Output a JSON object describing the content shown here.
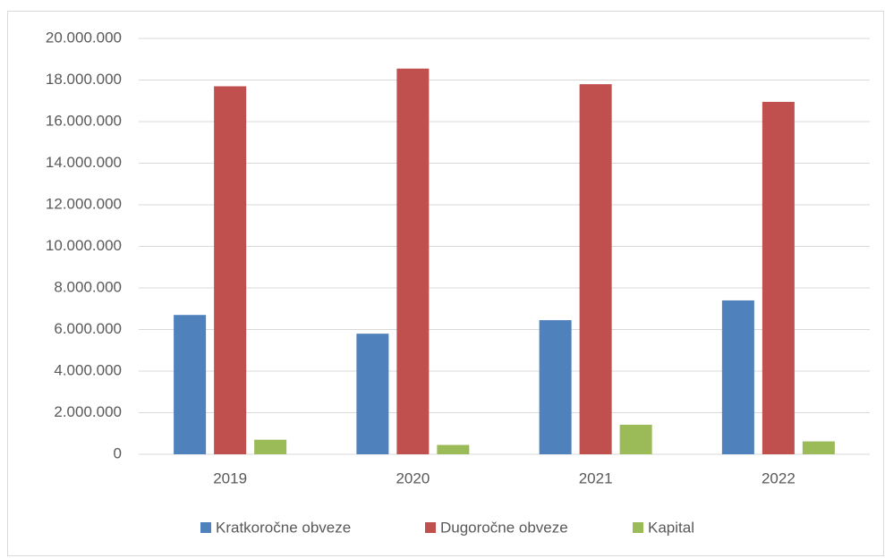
{
  "chart_data": {
    "type": "bar",
    "categories": [
      "2019",
      "2020",
      "2021",
      "2022"
    ],
    "series": [
      {
        "name": "Kratkoročne obveze",
        "color": "#4f81bd",
        "values": [
          6700000,
          5800000,
          6450000,
          7400000
        ]
      },
      {
        "name": "Dugoročne obveze",
        "color": "#c0504d",
        "values": [
          17700000,
          18550000,
          17800000,
          16950000
        ]
      },
      {
        "name": "Kapital",
        "color": "#9bbb59",
        "values": [
          700000,
          450000,
          1420000,
          620000
        ]
      }
    ],
    "ylim": [
      0,
      20000000
    ],
    "yticks": [
      0,
      {
        "value": 2000000,
        "label": "2.000.000"
      },
      {
        "value": 4000000,
        "label": "4.000.000"
      },
      {
        "value": 6000000,
        "label": "6.000.000"
      },
      {
        "value": 8000000,
        "label": "8.000.000"
      },
      {
        "value": 10000000,
        "label": "10.000.000"
      },
      {
        "value": 12000000,
        "label": "12.000.000"
      },
      {
        "value": 14000000,
        "label": "14.000.000"
      },
      {
        "value": 16000000,
        "label": "16.000.000"
      },
      {
        "value": 18000000,
        "label": "18.000.000"
      },
      {
        "value": 20000000,
        "label": "20.000.000"
      }
    ],
    "grid": true,
    "legend": "bottom"
  }
}
